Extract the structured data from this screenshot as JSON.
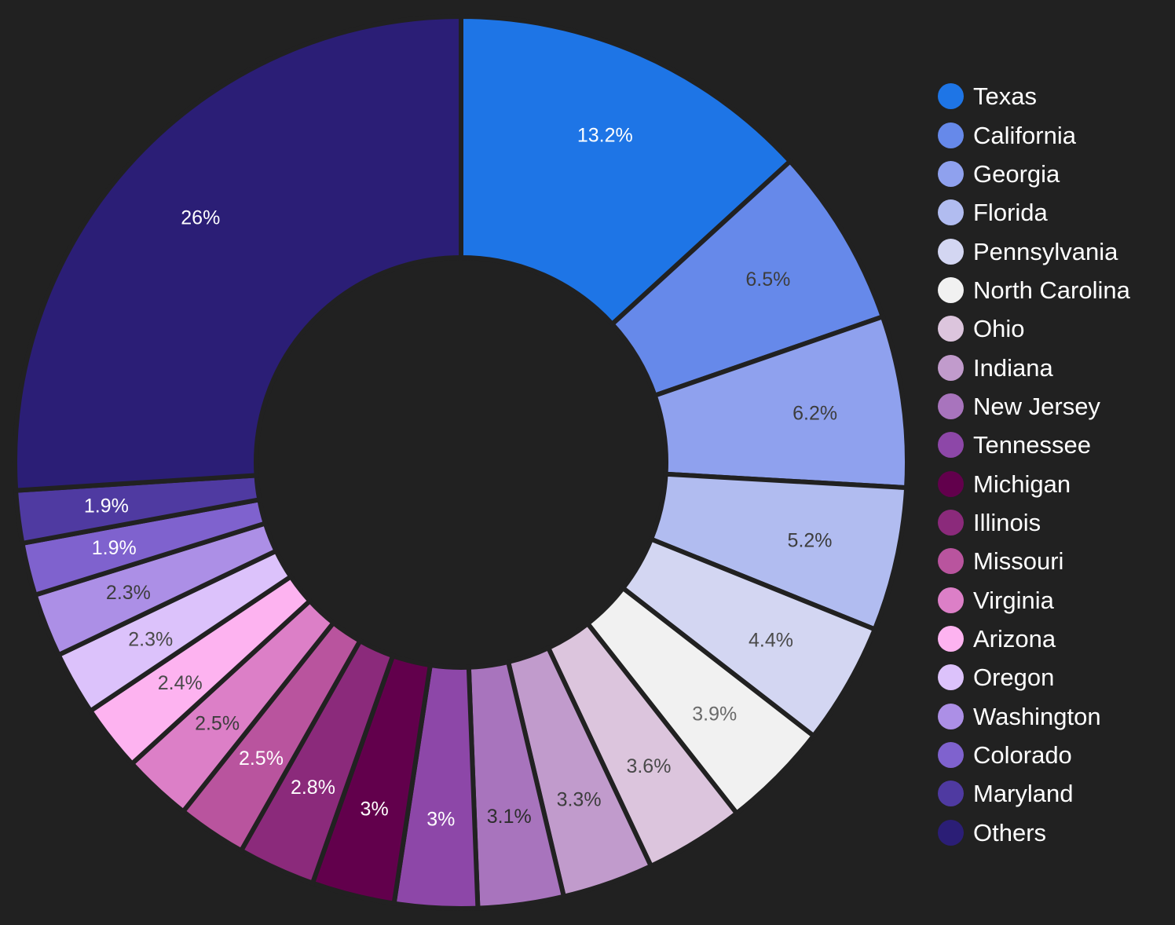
{
  "chart_data": {
    "type": "pie",
    "variant": "donut",
    "title": "",
    "legend_position": "right",
    "slices": [
      {
        "name": "Texas",
        "value": 13.2,
        "label": "13.2%",
        "color": "#1e75e6",
        "label_color": "#ffffff"
      },
      {
        "name": "California",
        "value": 6.5,
        "label": "6.5%",
        "color": "#6689ea",
        "label_color": "#3d3d3d"
      },
      {
        "name": "Georgia",
        "value": 6.2,
        "label": "6.2%",
        "color": "#8fa1ee",
        "label_color": "#3d3d3d"
      },
      {
        "name": "Florida",
        "value": 5.2,
        "label": "5.2%",
        "color": "#b1bcf0",
        "label_color": "#3d3d3d"
      },
      {
        "name": "Pennsylvania",
        "value": 4.4,
        "label": "4.4%",
        "color": "#d3d6f2",
        "label_color": "#4a4a4a"
      },
      {
        "name": "North Carolina",
        "value": 3.9,
        "label": "3.9%",
        "color": "#f1f1f1",
        "label_color": "#6a6a6a"
      },
      {
        "name": "Ohio",
        "value": 3.6,
        "label": "3.6%",
        "color": "#dcc5dd",
        "label_color": "#4a4a4a"
      },
      {
        "name": "Indiana",
        "value": 3.3,
        "label": "3.3%",
        "color": "#c19bcc",
        "label_color": "#3d3d3d"
      },
      {
        "name": "New Jersey",
        "value": 3.1,
        "label": "3.1%",
        "color": "#a874bd",
        "label_color": "#2e2e2e"
      },
      {
        "name": "Tennessee",
        "value": 3.0,
        "label": "3%",
        "color": "#8d47a8",
        "label_color": "#ffffff"
      },
      {
        "name": "Michigan",
        "value": 3.0,
        "label": "3%",
        "color": "#62004c",
        "label_color": "#ffffff"
      },
      {
        "name": "Illinois",
        "value": 2.8,
        "label": "2.8%",
        "color": "#8b2a7b",
        "label_color": "#ffffff"
      },
      {
        "name": "Missouri",
        "value": 2.5,
        "label": "2.5%",
        "color": "#b9549e",
        "label_color": "#ffffff"
      },
      {
        "name": "Virginia",
        "value": 2.5,
        "label": "2.5%",
        "color": "#dc7fc7",
        "label_color": "#3d3d3d"
      },
      {
        "name": "Arizona",
        "value": 2.4,
        "label": "2.4%",
        "color": "#fdb3f0",
        "label_color": "#4a4a4a"
      },
      {
        "name": "Oregon",
        "value": 2.3,
        "label": "2.3%",
        "color": "#dcc2fb",
        "label_color": "#4a4a4a"
      },
      {
        "name": "Washington",
        "value": 2.3,
        "label": "2.3%",
        "color": "#ac8fe6",
        "label_color": "#3d3d3d"
      },
      {
        "name": "Colorado",
        "value": 1.9,
        "label": "1.9%",
        "color": "#7f62ce",
        "label_color": "#ffffff"
      },
      {
        "name": "Maryland",
        "value": 1.9,
        "label": "1.9%",
        "color": "#4f3aa1",
        "label_color": "#ffffff"
      },
      {
        "name": "Others",
        "value": 26.0,
        "label": "26%",
        "color": "#2b1e76",
        "label_color": "#ffffff"
      }
    ]
  }
}
